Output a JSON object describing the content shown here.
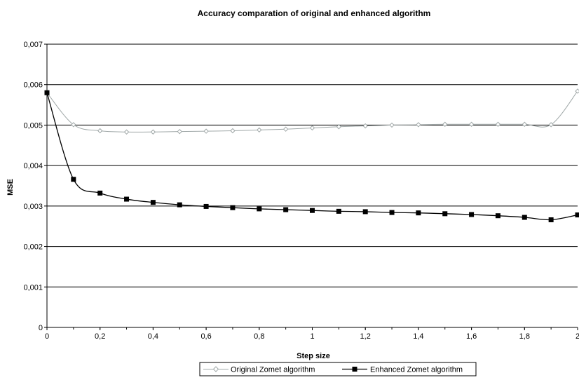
{
  "chart_data": {
    "type": "line",
    "title": "Accuracy comparation of original and enhanced algorithm",
    "xlabel": "Step size",
    "ylabel": "MSE",
    "x": [
      0,
      0.1,
      0.2,
      0.3,
      0.4,
      0.5,
      0.6,
      0.7,
      0.8,
      0.9,
      1.0,
      1.1,
      1.2,
      1.3,
      1.4,
      1.5,
      1.6,
      1.7,
      1.8,
      1.9,
      2.0
    ],
    "xlim": [
      0,
      2
    ],
    "ylim": [
      0,
      0.007
    ],
    "x_ticks": [
      "0",
      "0,2",
      "0,4",
      "0,6",
      "0,8",
      "1",
      "1,2",
      "1,4",
      "1,6",
      "1,8",
      "2"
    ],
    "y_ticks": [
      "0",
      "0,001",
      "0,002",
      "0,003",
      "0,004",
      "0,005",
      "0,006",
      "0,007"
    ],
    "grid": "horizontal",
    "legend_position": "bottom",
    "series": [
      {
        "name": "Original Zomet algorithm",
        "color": "#a0a8a8",
        "marker": "diamond-open",
        "values": [
          0.0058,
          0.00501,
          0.00486,
          0.00483,
          0.00483,
          0.00484,
          0.00485,
          0.00486,
          0.00488,
          0.0049,
          0.00493,
          0.00496,
          0.00498,
          0.005,
          0.00501,
          0.00502,
          0.00502,
          0.00502,
          0.00502,
          0.00501,
          0.00584
        ]
      },
      {
        "name": "Enhanced Zomet algorithm",
        "color": "#000000",
        "marker": "square-filled",
        "values": [
          0.0058,
          0.00366,
          0.00332,
          0.00317,
          0.00309,
          0.00303,
          0.00299,
          0.00296,
          0.00293,
          0.00291,
          0.00289,
          0.00287,
          0.00286,
          0.00284,
          0.00283,
          0.00281,
          0.00279,
          0.00276,
          0.00272,
          0.00266,
          0.00278
        ]
      }
    ]
  }
}
